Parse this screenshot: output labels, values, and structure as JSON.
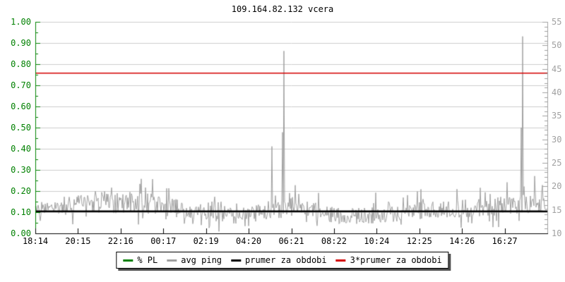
{
  "chart_data": {
    "type": "line",
    "title": "109.164.82.132 vcera",
    "x_tick_labels": [
      "18:14",
      "20:15",
      "22:16",
      "00:17",
      "02:19",
      "04:20",
      "06:21",
      "08:22",
      "10:24",
      "12:25",
      "14:26",
      "16:27"
    ],
    "left_axis": {
      "range": [
        0,
        1
      ],
      "tick_step": 0.1,
      "minor_tick_step": 0.05,
      "tick_labels": [
        "1.00",
        "0.90",
        "0.80",
        "0.70",
        "0.60",
        "0.50",
        "0.40",
        "0.30",
        "0.20",
        "0.10",
        "0.00"
      ],
      "color": "#008000"
    },
    "right_axis": {
      "range": [
        10,
        55
      ],
      "tick_step": 5,
      "minor_tick_step": 1,
      "tick_labels": [
        "55",
        "50",
        "45",
        "40",
        "35",
        "30",
        "25",
        "20",
        "15",
        "10"
      ],
      "color": "#a0a0a0"
    },
    "grid": {
      "horizontal": true,
      "vertical": false,
      "color": "#cccccc"
    },
    "legend": [
      {
        "label": "% PL",
        "color": "#008000"
      },
      {
        "label": "avg ping",
        "color": "#a0a0a0"
      },
      {
        "label": "prumer za obdobi",
        "color": "#000000"
      },
      {
        "label": "3*prumer za obdobi",
        "color": "#d40000"
      }
    ],
    "series": [
      {
        "name": "% PL",
        "axis": "left",
        "style": "constant-line",
        "color": "#008000",
        "constant_value": 0
      },
      {
        "name": "avg ping",
        "axis": "right",
        "style": "noisy-line",
        "color": "#a0a0a0",
        "mean_amp_profile": [
          [
            0.0,
            15.3,
            1.5
          ],
          [
            0.04,
            15.1,
            1.5
          ],
          [
            0.07,
            16.2,
            2.2
          ],
          [
            0.11,
            16.8,
            2.4
          ],
          [
            0.15,
            16.5,
            2.4
          ],
          [
            0.19,
            16.8,
            2.4
          ],
          [
            0.23,
            16.3,
            2.2
          ],
          [
            0.27,
            15.5,
            2.0
          ],
          [
            0.31,
            14.2,
            1.6
          ],
          [
            0.35,
            15.0,
            2.0
          ],
          [
            0.38,
            13.6,
            1.9
          ],
          [
            0.42,
            14.3,
            1.6
          ],
          [
            0.46,
            14.6,
            1.8
          ],
          [
            0.5,
            15.8,
            2.2
          ],
          [
            0.53,
            15.5,
            2.0
          ],
          [
            0.56,
            14.0,
            1.8
          ],
          [
            0.6,
            13.6,
            1.8
          ],
          [
            0.64,
            13.7,
            1.7
          ],
          [
            0.68,
            14.0,
            1.7
          ],
          [
            0.72,
            14.3,
            1.8
          ],
          [
            0.76,
            14.9,
            1.9
          ],
          [
            0.8,
            15.2,
            1.9
          ],
          [
            0.84,
            15.3,
            1.9
          ],
          [
            0.88,
            15.5,
            1.9
          ],
          [
            0.92,
            15.9,
            2.0
          ],
          [
            0.95,
            16.2,
            2.2
          ],
          [
            1.0,
            16.7,
            2.4
          ]
        ],
        "spikes_t_ms": [
          [
            0.462,
            28.5
          ],
          [
            0.4825,
            31.5
          ],
          [
            0.486,
            48.8
          ],
          [
            0.9485,
            32.5
          ],
          [
            0.9515,
            51.9
          ]
        ]
      },
      {
        "name": "prumer za obdobi",
        "axis": "right",
        "style": "hline",
        "color": "#000000",
        "constant_value": 14.7
      },
      {
        "name": "3*prumer za obdobi",
        "axis": "right",
        "style": "hline",
        "color": "#d40000",
        "constant_value": 44.1
      }
    ]
  }
}
